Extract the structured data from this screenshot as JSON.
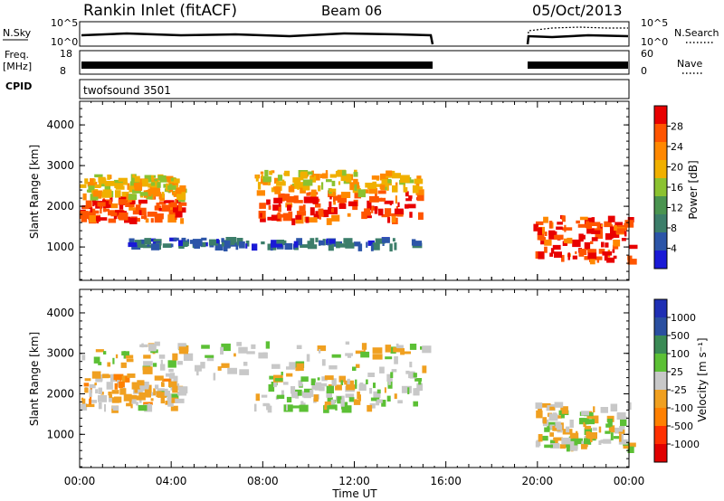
{
  "header": {
    "station": "Rankin Inlet (fitACF)",
    "beam": "Beam 06",
    "date": "05/Oct/2013"
  },
  "strip_labels": {
    "nsky": "N.Sky",
    "nsearch": "N.Search",
    "nsky_ticks": [
      "10^5",
      "10^0"
    ],
    "nsearch_ticks": [
      "10^5",
      "10^0"
    ],
    "freq_line1": "Freq.",
    "freq_line2": "[MHz]",
    "freq_ticks": [
      "18",
      "8"
    ],
    "nave": "Nave",
    "nave_ticks": [
      "60",
      "0"
    ],
    "cpid": "CPID",
    "cpid_value": "twofsound 3501"
  },
  "colors": {
    "power": [
      "#1a1ad6",
      "#2c55a8",
      "#3c7e6a",
      "#4a9450",
      "#8bc230",
      "#f0b000",
      "#ff8800",
      "#ff5500",
      "#e80000"
    ],
    "velocity": [
      "#1f2fb4",
      "#2a4fa0",
      "#3a8a55",
      "#5cc035",
      "#c8c8c8",
      "#f0a020",
      "#ff8000",
      "#ff3000",
      "#e00000"
    ]
  },
  "chart_data": [
    {
      "type": "heatmap",
      "title": "",
      "xlabel": "Time UT",
      "ylabel": "Slant Range [km]",
      "x_tick_labels": [
        "00:00",
        "04:00",
        "08:00",
        "12:00",
        "16:00",
        "20:00",
        "00:00"
      ],
      "x_range_hours": [
        0,
        24
      ],
      "y_ticks": [
        1000,
        2000,
        3000,
        4000
      ],
      "ylim": [
        180,
        4580
      ],
      "colorbar": {
        "label": "Power [dB]",
        "ticks": [
          "28",
          "24",
          "20",
          "16",
          "12",
          "8",
          "4"
        ],
        "range": [
          0,
          32
        ]
      },
      "data_gap_hours": [
        15.4,
        19.8
      ],
      "echo_bands": [
        {
          "t_start": 0.0,
          "t_end": 4.4,
          "range_km": [
            1700,
            2300
          ],
          "power_db": 28
        },
        {
          "t_start": 0.0,
          "t_end": 4.4,
          "range_km": [
            2300,
            2800
          ],
          "power_db": 20
        },
        {
          "t_start": 7.6,
          "t_end": 14.8,
          "range_km": [
            1700,
            2400
          ],
          "power_db": 28
        },
        {
          "t_start": 7.6,
          "t_end": 14.8,
          "range_km": [
            2400,
            2900
          ],
          "power_db": 20
        },
        {
          "t_start": 2.0,
          "t_end": 15.0,
          "range_km": [
            1050,
            1250
          ],
          "power_db": 6
        },
        {
          "t_start": 19.8,
          "t_end": 24.0,
          "range_km": [
            700,
            1800
          ],
          "power_db": 28
        }
      ]
    },
    {
      "type": "heatmap",
      "title": "",
      "xlabel": "Time UT",
      "ylabel": "Slant Range [km]",
      "x_tick_labels": [
        "00:00",
        "04:00",
        "08:00",
        "12:00",
        "16:00",
        "20:00",
        "00:00"
      ],
      "x_range_hours": [
        0,
        24
      ],
      "y_ticks": [
        1000,
        2000,
        3000,
        4000
      ],
      "ylim": [
        180,
        4580
      ],
      "colorbar": {
        "label": "Velocity [m s⁻¹]",
        "ticks": [
          "1000",
          "500",
          "100",
          "25",
          "-25",
          "-100",
          "-500",
          "-1000"
        ],
        "range": [
          -1200,
          1200
        ]
      },
      "data_gap_hours": [
        15.4,
        19.8
      ],
      "echo_bands": [
        {
          "t_start": 0.0,
          "t_end": 4.4,
          "range_km": [
            1700,
            2500
          ],
          "velocity_ms": -150
        },
        {
          "t_start": 7.6,
          "t_end": 14.8,
          "range_km": [
            1700,
            2500
          ],
          "velocity_ms": 80
        },
        {
          "t_start": 0.0,
          "t_end": 15.0,
          "range_km": [
            2500,
            3300
          ],
          "velocity_ms": 0
        },
        {
          "t_start": 19.8,
          "t_end": 24.0,
          "range_km": [
            700,
            1800
          ],
          "velocity_ms": 0
        }
      ]
    }
  ]
}
